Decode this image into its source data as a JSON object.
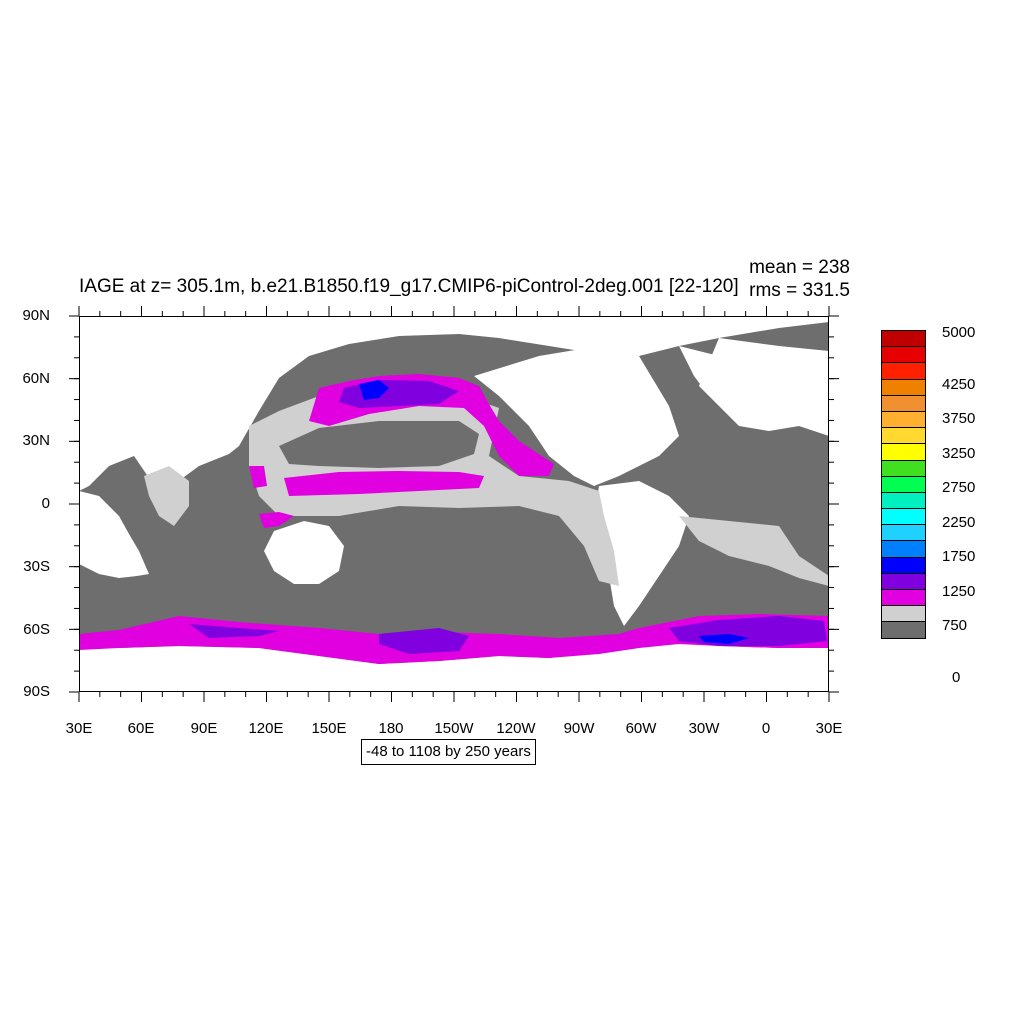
{
  "title": "IAGE at z= 305.1m, b.e21.B1850.f19_g17.CMIP6-piControl-2deg.001 [22-120]",
  "stats": {
    "mean": "mean = 238",
    "rms": "rms = 331.5"
  },
  "axes": {
    "y_ticks": [
      "90N",
      "60N",
      "30N",
      "0",
      "30S",
      "60S",
      "90S"
    ],
    "x_ticks": [
      "30E",
      "60E",
      "90E",
      "120E",
      "150E",
      "180",
      "150W",
      "120W",
      "90W",
      "60W",
      "30W",
      "0",
      "30E"
    ]
  },
  "contour_info": "-48 to 1108 by 250 years",
  "legend": {
    "colors": [
      "#c00000",
      "#e60000",
      "#ff2000",
      "#f08000",
      "#f09030",
      "#ffb030",
      "#ffd830",
      "#ffff00",
      "#40e020",
      "#00ff50",
      "#00f0c0",
      "#00ffff",
      "#20d0ff",
      "#0080ff",
      "#0000ff",
      "#8000e0",
      "#e000e0",
      "#d0d0d0",
      "#6e6e6e"
    ],
    "labels": [
      "5000",
      "4250",
      "3750",
      "3250",
      "2750",
      "2250",
      "1750",
      "1250",
      "750",
      "0"
    ]
  },
  "colors": {
    "land": "#ffffff",
    "low_age": "#6e6e6e",
    "mid_age": "#d0d0d0",
    "high_age": "#e000e0",
    "higher_age": "#8000e0",
    "highest_age": "#0000ff"
  }
}
